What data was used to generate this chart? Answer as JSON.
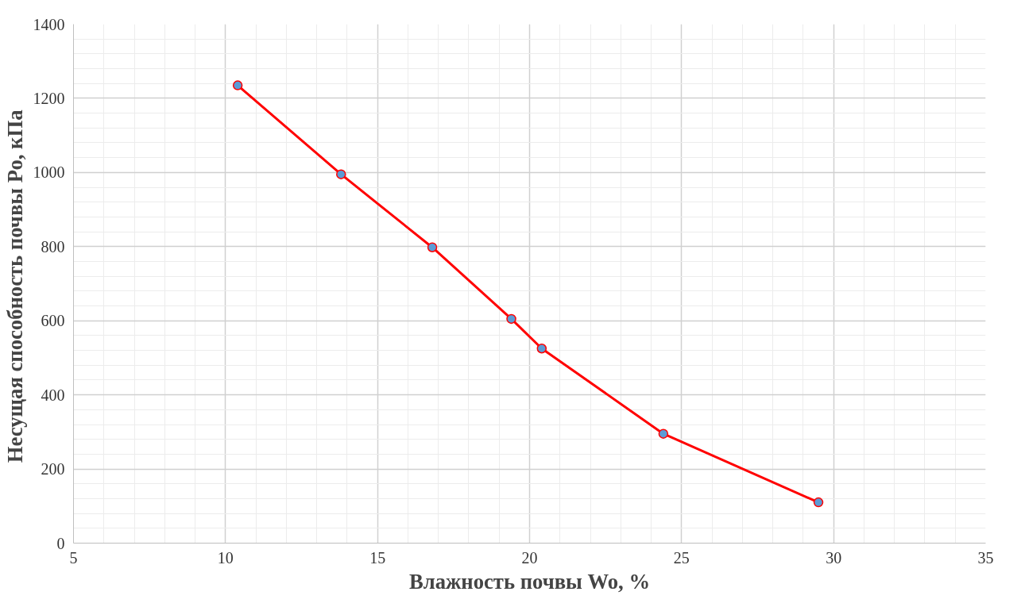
{
  "chart_data": {
    "type": "line",
    "xlabel": "Влажность почвы Wo, %",
    "ylabel": "Несущая способность  почвы Ро, кПа",
    "x": [
      10.4,
      13.8,
      16.8,
      19.4,
      20.4,
      24.4,
      29.5
    ],
    "series": [
      {
        "color": "#ff0000",
        "values": [
          1235,
          995,
          798,
          605,
          525,
          295,
          110
        ]
      }
    ],
    "xlim": [
      5,
      35
    ],
    "xticks": [
      5,
      10,
      15,
      20,
      25,
      30,
      35
    ],
    "ylim": [
      0,
      1400
    ],
    "yticks": [
      0,
      200,
      400,
      600,
      800,
      1000,
      1200,
      1400
    ],
    "grid": true,
    "marker": "circle",
    "line_style": "solid"
  }
}
